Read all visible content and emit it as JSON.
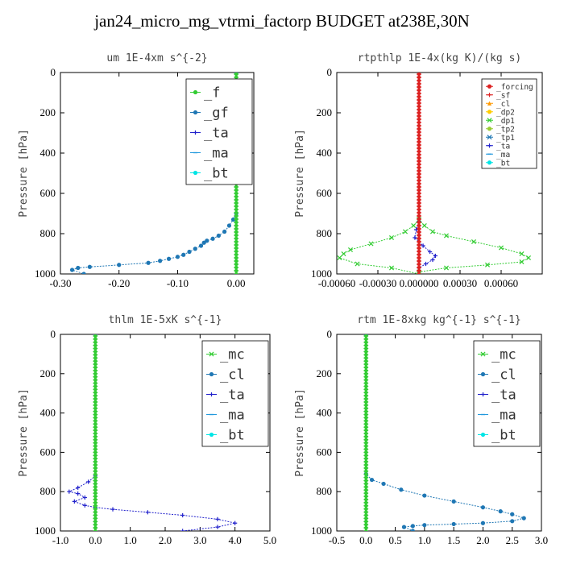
{
  "figure": {
    "title": "jan24_micro_mg_vtrmi_factorp  BUDGET at238E,30N"
  },
  "chart_data": [
    {
      "type": "line",
      "title": "um  1E-4xm s^{-2}",
      "xlabel": "",
      "ylabel": "Pressure [hPa]",
      "xlim": [
        -0.3,
        0.03
      ],
      "ylim": [
        1000,
        0
      ],
      "xticks": [
        -0.3,
        -0.2,
        -0.1,
        0.0
      ],
      "xtick_labels": [
        "-0.30",
        "-0.20",
        "-0.10",
        "0.00"
      ],
      "yticks": [
        0,
        200,
        400,
        600,
        800,
        1000
      ],
      "grid": false,
      "legend_position": "top-right",
      "legend_size": "large",
      "series": [
        {
          "name": "_f",
          "color": "#33cc33",
          "marker": "circle",
          "points": [
            [
              0,
              0
            ],
            [
              0,
              1000
            ]
          ]
        },
        {
          "name": "_gf",
          "color": "#1f77b4",
          "marker": "circle",
          "points": [
            [
              0,
              0
            ],
            [
              0,
              1000
            ]
          ]
        },
        {
          "name": "_ta",
          "color": "#2222cc",
          "marker": "plus",
          "points": [
            [
              0,
              0
            ],
            [
              0,
              1000
            ]
          ]
        },
        {
          "name": "_ma",
          "color": "#2299dd",
          "marker": "dash",
          "points": [
            [
              0,
              0
            ],
            [
              0,
              1000
            ]
          ]
        },
        {
          "name": "_bt",
          "color": "#00e5e5",
          "marker": "circle",
          "points": [
            [
              0,
              0
            ],
            [
              0,
              1000
            ]
          ]
        }
      ],
      "profile": {
        "color": "#1f77b4",
        "points": [
          [
            0,
            0
          ],
          [
            0,
            700
          ],
          [
            -0.005,
            730
          ],
          [
            -0.012,
            760
          ],
          [
            -0.02,
            790
          ],
          [
            -0.03,
            810
          ],
          [
            -0.04,
            825
          ],
          [
            -0.05,
            835
          ],
          [
            -0.055,
            845
          ],
          [
            -0.06,
            860
          ],
          [
            -0.07,
            875
          ],
          [
            -0.08,
            890
          ],
          [
            -0.09,
            905
          ],
          [
            -0.1,
            915
          ],
          [
            -0.115,
            925
          ],
          [
            -0.13,
            935
          ],
          [
            -0.15,
            945
          ],
          [
            -0.2,
            955
          ],
          [
            -0.25,
            965
          ],
          [
            -0.27,
            970
          ],
          [
            -0.28,
            980
          ],
          [
            -0.26,
            1000
          ]
        ]
      },
      "vertical_line": {
        "x": 0,
        "color": "#33cc33"
      }
    },
    {
      "type": "line",
      "title": "rtpthlp  1E-4x(kg K)/(kg s)",
      "xlabel": "",
      "ylabel": "Pressure [hPa]",
      "xlim": [
        -0.0006,
        0.0009
      ],
      "ylim": [
        1000,
        0
      ],
      "xticks": [
        -0.0006,
        -0.0003,
        0.0,
        0.0003,
        0.0006
      ],
      "xtick_labels": [
        "-0.00060",
        "-0.00030",
        "0.000000",
        "0.00030",
        "0.00060"
      ],
      "yticks": [
        0,
        200,
        400,
        600,
        800,
        1000
      ],
      "grid": false,
      "legend_position": "top-right",
      "legend_size": "small",
      "series": [
        {
          "name": "_forcing",
          "color": "#dd2222",
          "marker": "circle",
          "points": [
            [
              0,
              0
            ],
            [
              0,
              1000
            ]
          ]
        },
        {
          "name": "_sf",
          "color": "#dd2222",
          "marker": "plus",
          "points": [
            [
              0,
              0
            ],
            [
              0,
              1000
            ]
          ]
        },
        {
          "name": "_cl",
          "color": "#ff9900",
          "marker": "triangle",
          "points": [
            [
              0,
              0
            ],
            [
              0,
              1000
            ]
          ]
        },
        {
          "name": "_dp2",
          "color": "#ffcc00",
          "marker": "circle",
          "points": [
            [
              0,
              0
            ],
            [
              0,
              1000
            ]
          ]
        },
        {
          "name": "_dp1",
          "color": "#33cc33",
          "marker": "x",
          "points": [
            [
              0,
              730
            ],
            [
              4e-05,
              760
            ],
            [
              0.0001,
              790
            ],
            [
              0.0002,
              810
            ],
            [
              0.0004,
              840
            ],
            [
              0.0006,
              870
            ],
            [
              0.00075,
              900
            ],
            [
              0.0008,
              920
            ],
            [
              0.00075,
              940
            ],
            [
              0.0005,
              955
            ],
            [
              0.0002,
              970
            ],
            [
              0,
              990
            ],
            [
              0,
              1000
            ],
            [
              -0.0002,
              970
            ],
            [
              -0.00045,
              950
            ],
            [
              -0.00058,
              920
            ],
            [
              -0.00055,
              900
            ],
            [
              -0.0005,
              880
            ],
            [
              -0.00035,
              850
            ],
            [
              -0.0002,
              820
            ],
            [
              -0.0001,
              790
            ],
            [
              -4e-05,
              760
            ],
            [
              0,
              730
            ]
          ]
        },
        {
          "name": "_tp2",
          "color": "#99cc33",
          "marker": "circle",
          "points": [
            [
              0,
              0
            ],
            [
              0,
              1000
            ]
          ]
        },
        {
          "name": "_tp1",
          "color": "#1f77b4",
          "marker": "x",
          "points": [
            [
              0,
              0
            ],
            [
              0,
              1000
            ]
          ]
        },
        {
          "name": "_ta",
          "color": "#2222cc",
          "marker": "plus",
          "points": [
            [
              0,
              740
            ],
            [
              -2e-05,
              780
            ],
            [
              -3e-05,
              820
            ],
            [
              3e-05,
              860
            ],
            [
              8e-05,
              890
            ],
            [
              0.00012,
              910
            ],
            [
              0.0001,
              930
            ],
            [
              5e-05,
              950
            ],
            [
              0,
              970
            ],
            [
              0,
              1000
            ]
          ]
        },
        {
          "name": "_ma",
          "color": "#2299dd",
          "marker": "dash",
          "points": [
            [
              0,
              0
            ],
            [
              0,
              1000
            ]
          ]
        },
        {
          "name": "_bt",
          "color": "#00e5e5",
          "marker": "circle",
          "points": [
            [
              0,
              0
            ],
            [
              0,
              1000
            ]
          ]
        }
      ],
      "vertical_line": {
        "x": 0,
        "color": "#dd2222"
      }
    },
    {
      "type": "line",
      "title": "thlm  1E-5xK s^{-1}",
      "xlabel": "",
      "ylabel": "Pressure [hPa]",
      "xlim": [
        -1.0,
        5.0
      ],
      "ylim": [
        1000,
        0
      ],
      "xticks": [
        -1.0,
        0.0,
        1.0,
        2.0,
        3.0,
        4.0,
        5.0
      ],
      "xtick_labels": [
        "-1.0",
        "0.0",
        "1.0",
        "2.0",
        "3.0",
        "4.0",
        "5.0"
      ],
      "yticks": [
        0,
        200,
        400,
        600,
        800,
        1000
      ],
      "grid": false,
      "legend_position": "top-right",
      "legend_size": "large",
      "series": [
        {
          "name": "_mc",
          "color": "#33cc33",
          "marker": "x",
          "points": [
            [
              0,
              0
            ],
            [
              0,
              1000
            ]
          ]
        },
        {
          "name": "_cl",
          "color": "#1f77b4",
          "marker": "circle",
          "points": [
            [
              0,
              0
            ],
            [
              0,
              1000
            ]
          ]
        },
        {
          "name": "_ta",
          "color": "#2222cc",
          "marker": "plus",
          "points": [
            [
              0,
              0
            ],
            [
              0,
              720
            ],
            [
              -0.2,
              750
            ],
            [
              -0.5,
              780
            ],
            [
              -0.75,
              800
            ],
            [
              -0.5,
              810
            ],
            [
              -0.3,
              830
            ],
            [
              -0.6,
              850
            ],
            [
              -0.3,
              870
            ],
            [
              0,
              880
            ],
            [
              0.5,
              890
            ],
            [
              1.5,
              905
            ],
            [
              2.5,
              920
            ],
            [
              3.5,
              940
            ],
            [
              4.0,
              960
            ],
            [
              3.5,
              980
            ],
            [
              2.5,
              1000
            ]
          ]
        },
        {
          "name": "_ma",
          "color": "#2299dd",
          "marker": "dash",
          "points": [
            [
              0,
              0
            ],
            [
              0,
              1000
            ]
          ]
        },
        {
          "name": "_bt",
          "color": "#00e5e5",
          "marker": "circle",
          "points": [
            [
              0,
              0
            ],
            [
              0,
              1000
            ]
          ]
        }
      ],
      "vertical_line": {
        "x": 0,
        "color": "#33cc33"
      }
    },
    {
      "type": "line",
      "title": "rtm  1E-8xkg kg^{-1} s^{-1}",
      "xlabel": "",
      "ylabel": "Pressure [hPa]",
      "xlim": [
        -0.5,
        3.0
      ],
      "ylim": [
        1000,
        0
      ],
      "xticks": [
        -0.5,
        0.0,
        0.5,
        1.0,
        1.5,
        2.0,
        2.5,
        3.0
      ],
      "xtick_labels": [
        "-0.5",
        "0.0",
        "0.5",
        "1.0",
        "1.5",
        "2.0",
        "2.5",
        "3.0"
      ],
      "yticks": [
        0,
        200,
        400,
        600,
        800,
        1000
      ],
      "grid": false,
      "legend_position": "top-right",
      "legend_size": "large",
      "series": [
        {
          "name": "_mc",
          "color": "#33cc33",
          "marker": "x",
          "points": [
            [
              0,
              0
            ],
            [
              0,
              1000
            ]
          ]
        },
        {
          "name": "_cl",
          "color": "#1f77b4",
          "marker": "circle",
          "points": [
            [
              0,
              0
            ],
            [
              0,
              1000
            ]
          ]
        },
        {
          "name": "_ta",
          "color": "#2222cc",
          "marker": "plus",
          "points": [
            [
              0,
              0
            ],
            [
              0,
              1000
            ]
          ]
        },
        {
          "name": "_ma",
          "color": "#2299dd",
          "marker": "dash",
          "points": [
            [
              0,
              0
            ],
            [
              0,
              1000
            ]
          ]
        },
        {
          "name": "_bt",
          "color": "#00e5e5",
          "marker": "circle",
          "points": [
            [
              0,
              0
            ],
            [
              0,
              1000
            ]
          ]
        }
      ],
      "profile": {
        "color": "#1f77b4",
        "points": [
          [
            0,
            0
          ],
          [
            0,
            710
          ],
          [
            0.1,
            740
          ],
          [
            0.3,
            760
          ],
          [
            0.6,
            790
          ],
          [
            1.0,
            820
          ],
          [
            1.5,
            850
          ],
          [
            2.0,
            880
          ],
          [
            2.3,
            900
          ],
          [
            2.5,
            915
          ],
          [
            2.7,
            935
          ],
          [
            2.5,
            950
          ],
          [
            2.0,
            960
          ],
          [
            1.5,
            965
          ],
          [
            1.0,
            970
          ],
          [
            0.8,
            975
          ],
          [
            0.65,
            980
          ],
          [
            0.8,
            1000
          ]
        ]
      },
      "vertical_line": {
        "x": 0,
        "color": "#33cc33"
      }
    }
  ]
}
